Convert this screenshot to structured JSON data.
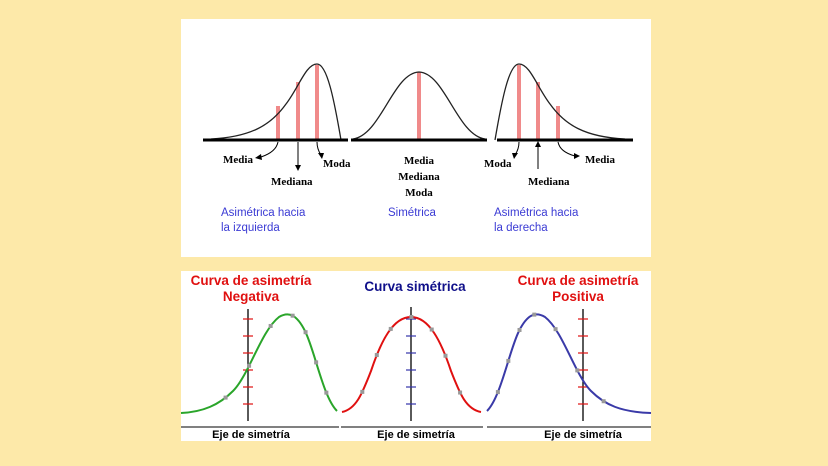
{
  "top": {
    "left_curve": {
      "labels": {
        "media": "Media",
        "mediana": "Mediana",
        "moda": "Moda"
      },
      "caption": [
        "Asimétrica hacia",
        "la izquierda"
      ]
    },
    "center_curve": {
      "labels": [
        "Media",
        "Mediana",
        "Moda"
      ],
      "caption": "Simétrica"
    },
    "right_curve": {
      "labels": {
        "moda": "Moda",
        "mediana": "Mediana",
        "media": "Media"
      },
      "caption": [
        "Asimétrica hacia",
        "la derecha"
      ]
    }
  },
  "bottom": {
    "left_chart": {
      "title": [
        "Curva de asimetría",
        "Negativa"
      ],
      "axis_caption": "Eje de simetría",
      "curve_color": "#2aa52a",
      "tick_color": "#e01010"
    },
    "center_chart": {
      "title": "Curva simétrica",
      "axis_caption": "Eje de simetría",
      "curve_color": "#e01010",
      "tick_color": "#3333aa"
    },
    "right_chart": {
      "title": [
        "Curva de asimetría",
        "Positiva"
      ],
      "axis_caption": "Eje de simetría",
      "curve_color": "#3a3aa8",
      "tick_color": "#e01010"
    }
  },
  "colors": {
    "background": "#fde9a9",
    "marker_bar": "#f08a8a",
    "point": "#999999"
  }
}
